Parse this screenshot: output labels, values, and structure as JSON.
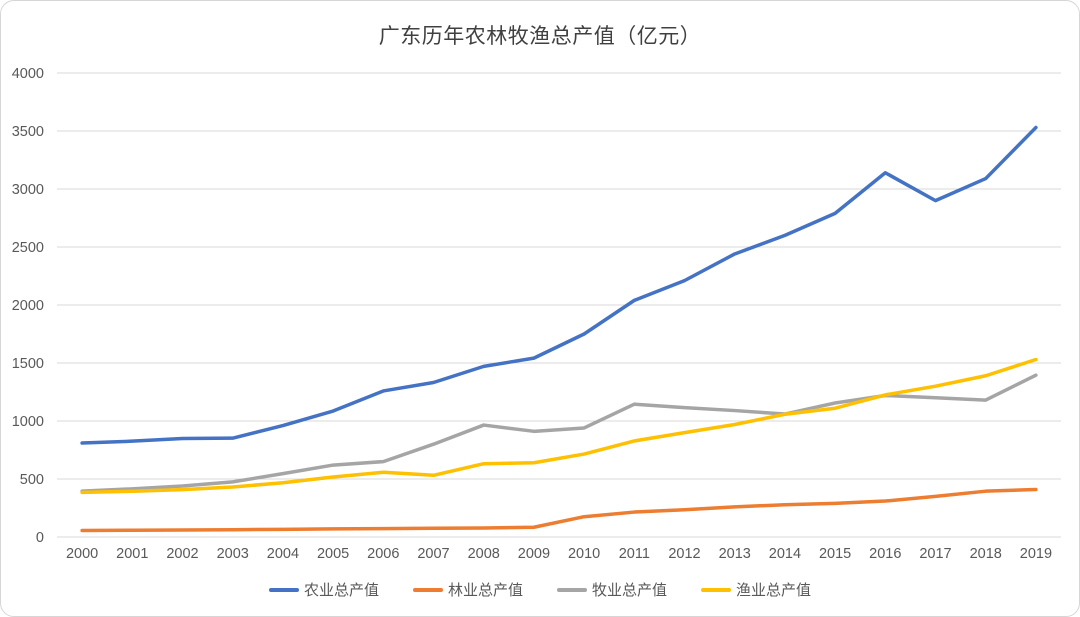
{
  "chart_data": {
    "type": "line",
    "title": "广东历年农林牧渔总产值（亿元）",
    "xlabel": "",
    "ylabel": "",
    "ylim": [
      0,
      4000
    ],
    "ytick_step": 500,
    "ytick_labels": [
      "0",
      "500",
      "1000",
      "1500",
      "2000",
      "2500",
      "3000",
      "3500",
      "4000"
    ],
    "grid": true,
    "legend_position": "bottom",
    "categories": [
      "2000",
      "2001",
      "2002",
      "2003",
      "2004",
      "2005",
      "2006",
      "2007",
      "2008",
      "2009",
      "2010",
      "2011",
      "2012",
      "2013",
      "2014",
      "2015",
      "2016",
      "2017",
      "2018",
      "2019"
    ],
    "series": [
      {
        "name": "农业总产值",
        "color": "#4472C4",
        "values": [
          810,
          826,
          849,
          852,
          961,
          1086,
          1259,
          1332,
          1471,
          1542,
          1750,
          2040,
          2210,
          2440,
          2600,
          2790,
          3140,
          2900,
          3090,
          3530
        ]
      },
      {
        "name": "林业总产值",
        "color": "#ED7D31",
        "values": [
          56,
          58,
          60,
          63,
          66,
          70,
          72,
          75,
          78,
          84,
          175,
          215,
          235,
          260,
          278,
          290,
          310,
          350,
          395,
          410
        ]
      },
      {
        "name": "牧业总产值",
        "color": "#A5A5A5",
        "values": [
          395,
          415,
          440,
          475,
          546,
          620,
          650,
          800,
          965,
          911,
          940,
          1145,
          1115,
          1090,
          1060,
          1155,
          1220,
          1200,
          1180,
          1395
        ]
      },
      {
        "name": "渔业总产值",
        "color": "#FFC000",
        "values": [
          385,
          394,
          408,
          431,
          468,
          517,
          558,
          532,
          632,
          640,
          715,
          828,
          900,
          970,
          1058,
          1110,
          1225,
          1300,
          1390,
          1530
        ]
      }
    ]
  },
  "styles": {
    "background": "#FFFFFF",
    "border": "#D6D6D6",
    "title_text": "#404040",
    "axis_text": "#595959",
    "gridline": "#D9D9D9"
  }
}
